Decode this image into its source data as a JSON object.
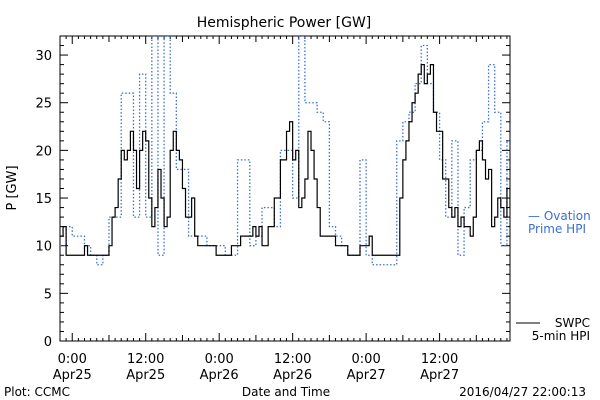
{
  "chart_data": {
    "type": "line",
    "title": "Hemispheric Power [GW]",
    "ylabel": "P [GW]",
    "xlabel": "Date and Time",
    "ylim": [
      0,
      32
    ],
    "yticks": [
      0,
      5,
      10,
      15,
      20,
      25,
      30
    ],
    "xlim_hours": [
      -2,
      71.5
    ],
    "x_ticks": [
      {
        "hour": 0,
        "time": "0:00",
        "date": "Apr25"
      },
      {
        "hour": 12,
        "time": "12:00",
        "date": "Apr25"
      },
      {
        "hour": 24,
        "time": "0:00",
        "date": "Apr26"
      },
      {
        "hour": 36,
        "time": "12:00",
        "date": "Apr26"
      },
      {
        "hour": 48,
        "time": "0:00",
        "date": "Apr27"
      },
      {
        "hour": 60,
        "time": "12:00",
        "date": "Apr27"
      }
    ],
    "grid": false,
    "series": [
      {
        "name": "SWPC 5-min HPI",
        "color": "#000000",
        "style": "solid",
        "points": [
          [
            -2,
            11
          ],
          [
            -1.5,
            12
          ],
          [
            -1,
            9
          ],
          [
            0,
            9
          ],
          [
            1,
            9
          ],
          [
            2,
            10
          ],
          [
            2.5,
            9
          ],
          [
            3,
            9
          ],
          [
            4,
            9
          ],
          [
            5,
            9
          ],
          [
            6,
            10
          ],
          [
            6.5,
            13
          ],
          [
            7,
            14
          ],
          [
            7.5,
            17
          ],
          [
            8,
            20
          ],
          [
            8.5,
            19
          ],
          [
            9,
            20
          ],
          [
            9.5,
            22
          ],
          [
            10,
            20
          ],
          [
            10.5,
            16
          ],
          [
            11,
            20
          ],
          [
            11.5,
            22
          ],
          [
            12,
            21
          ],
          [
            12.5,
            15
          ],
          [
            13,
            12
          ],
          [
            13.5,
            14
          ],
          [
            14,
            18
          ],
          [
            14.5,
            15
          ],
          [
            15,
            12
          ],
          [
            15.5,
            13
          ],
          [
            16,
            20
          ],
          [
            16.5,
            22
          ],
          [
            17,
            20
          ],
          [
            17.5,
            19
          ],
          [
            18,
            16
          ],
          [
            18.5,
            13
          ],
          [
            19,
            13
          ],
          [
            19.5,
            15
          ],
          [
            20,
            11
          ],
          [
            20.5,
            10
          ],
          [
            21,
            10
          ],
          [
            22,
            10
          ],
          [
            23,
            10
          ],
          [
            23.5,
            9
          ],
          [
            24,
            9
          ],
          [
            25,
            9
          ],
          [
            26,
            10
          ],
          [
            27,
            10
          ],
          [
            27.5,
            11
          ],
          [
            28,
            11
          ],
          [
            29,
            11
          ],
          [
            29.5,
            12
          ],
          [
            30,
            11
          ],
          [
            30.5,
            12
          ],
          [
            31,
            10
          ],
          [
            32,
            12
          ],
          [
            33,
            15
          ],
          [
            34,
            19
          ],
          [
            35,
            22
          ],
          [
            35.5,
            23
          ],
          [
            36,
            19
          ],
          [
            36.5,
            20
          ],
          [
            37,
            14
          ],
          [
            37.5,
            15
          ],
          [
            38,
            17
          ],
          [
            38.5,
            22
          ],
          [
            39,
            20
          ],
          [
            39.5,
            17
          ],
          [
            40,
            14
          ],
          [
            40.5,
            11
          ],
          [
            41,
            11
          ],
          [
            42,
            11
          ],
          [
            43,
            10
          ],
          [
            44,
            10
          ],
          [
            45,
            9
          ],
          [
            46,
            9
          ],
          [
            47,
            10
          ],
          [
            48,
            10
          ],
          [
            48.5,
            11
          ],
          [
            49,
            9
          ],
          [
            50,
            9
          ],
          [
            51,
            9
          ],
          [
            52,
            9
          ],
          [
            53,
            9
          ],
          [
            53.5,
            15
          ],
          [
            54,
            19
          ],
          [
            54.5,
            21
          ],
          [
            55,
            23
          ],
          [
            55.5,
            25
          ],
          [
            56,
            26
          ],
          [
            56.5,
            28
          ],
          [
            57,
            29
          ],
          [
            57.5,
            27
          ],
          [
            58,
            28
          ],
          [
            58.5,
            29
          ],
          [
            59,
            24
          ],
          [
            59.5,
            22
          ],
          [
            60,
            22
          ],
          [
            60.5,
            17
          ],
          [
            61,
            17
          ],
          [
            61.5,
            14
          ],
          [
            62,
            13
          ],
          [
            62.5,
            14
          ],
          [
            63,
            12
          ],
          [
            63.5,
            13
          ],
          [
            64,
            12
          ],
          [
            64.5,
            12
          ],
          [
            65,
            11
          ],
          [
            65.5,
            13
          ],
          [
            66,
            20
          ],
          [
            66.5,
            21
          ],
          [
            67,
            19
          ],
          [
            67.5,
            17
          ],
          [
            68,
            18
          ],
          [
            68.5,
            12
          ],
          [
            69,
            13
          ],
          [
            69.5,
            15
          ],
          [
            70,
            14
          ],
          [
            70.5,
            13
          ],
          [
            71,
            16
          ],
          [
            71.5,
            14
          ]
        ]
      },
      {
        "name": "Ovation Prime HPI",
        "color": "#3a6fd8",
        "style": "dotted",
        "points": [
          [
            -2,
            10
          ],
          [
            -1,
            12
          ],
          [
            0,
            11
          ],
          [
            1,
            11
          ],
          [
            2,
            10
          ],
          [
            3,
            9
          ],
          [
            4,
            8
          ],
          [
            5,
            9
          ],
          [
            6,
            13
          ],
          [
            7,
            13
          ],
          [
            8,
            26
          ],
          [
            9,
            26
          ],
          [
            10,
            13
          ],
          [
            11,
            28
          ],
          [
            12,
            13
          ],
          [
            13,
            32
          ],
          [
            14,
            9
          ],
          [
            15,
            32
          ],
          [
            16,
            26
          ],
          [
            17,
            18
          ],
          [
            18,
            18
          ],
          [
            19,
            11
          ],
          [
            20,
            11
          ],
          [
            21,
            11
          ],
          [
            22,
            10
          ],
          [
            23,
            10
          ],
          [
            24,
            10
          ],
          [
            25,
            9
          ],
          [
            26,
            9
          ],
          [
            27,
            19
          ],
          [
            28,
            19
          ],
          [
            29,
            10
          ],
          [
            30,
            11
          ],
          [
            31,
            14
          ],
          [
            32,
            14
          ],
          [
            33,
            12
          ],
          [
            34,
            20
          ],
          [
            35,
            20
          ],
          [
            36,
            15
          ],
          [
            37,
            32
          ],
          [
            38,
            25
          ],
          [
            39,
            25
          ],
          [
            40,
            24
          ],
          [
            41,
            23
          ],
          [
            42,
            12
          ],
          [
            43,
            11
          ],
          [
            44,
            10
          ],
          [
            45,
            9
          ],
          [
            46,
            9
          ],
          [
            47,
            19
          ],
          [
            48,
            9
          ],
          [
            49,
            8
          ],
          [
            50,
            8
          ],
          [
            51,
            8
          ],
          [
            52,
            8
          ],
          [
            53,
            21
          ],
          [
            54,
            23
          ],
          [
            55,
            24
          ],
          [
            56,
            27
          ],
          [
            57,
            31
          ],
          [
            58,
            27
          ],
          [
            59,
            24
          ],
          [
            60,
            19
          ],
          [
            61,
            13
          ],
          [
            62,
            21
          ],
          [
            63,
            9
          ],
          [
            64,
            14
          ],
          [
            65,
            19
          ],
          [
            66,
            20
          ],
          [
            67,
            23
          ],
          [
            68,
            29
          ],
          [
            69,
            24
          ],
          [
            70,
            10
          ],
          [
            71,
            21
          ]
        ]
      }
    ],
    "legend": [
      {
        "text": "— Ovation",
        "color": "#3a6fd8"
      },
      {
        "text": "Prime HPI",
        "color": "#3a6fd8"
      },
      {
        "text": "SWPC",
        "color": "#000000"
      },
      {
        "text": "5-min HPI",
        "color": "#000000"
      }
    ]
  },
  "footer": {
    "left": "Plot: CCMC",
    "center": "Date and Time",
    "right": "2016/04/27 22:00:13"
  }
}
